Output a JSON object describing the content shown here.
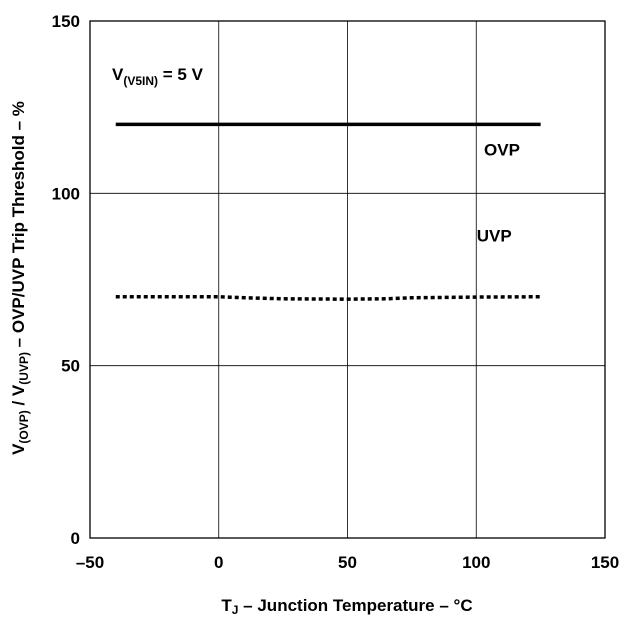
{
  "chart_data": {
    "type": "line",
    "xlabel": {
      "main": "T",
      "sub": "J",
      "rest": " – Junction Temperature – °C"
    },
    "ylabel": {
      "v1": "V",
      "s1": "(OVP)",
      "mid": " / V",
      "s2": "(UVP)",
      "rest": " – OVP/UVP Trip Threshold – %"
    },
    "annotation": {
      "main": "V",
      "sub": "(V5IN)",
      "rest": " = 5 V"
    },
    "xlim": [
      -50,
      150
    ],
    "ylim": [
      0,
      150
    ],
    "x_ticks": [
      -50,
      0,
      50,
      100,
      150
    ],
    "y_ticks": [
      0,
      50,
      100,
      150
    ],
    "x_tick_labels": [
      "–50",
      "0",
      "50",
      "100",
      "150"
    ],
    "y_tick_labels": [
      "0",
      "50",
      "100",
      "150"
    ],
    "grid": true,
    "series": [
      {
        "name": "OVP",
        "style": "solid",
        "color": "#000000",
        "x": [
          -40,
          125
        ],
        "y": [
          120,
          120
        ]
      },
      {
        "name": "UVP",
        "style": "dotted",
        "color": "#000000",
        "x": [
          -40,
          0,
          10,
          25,
          50,
          65,
          75,
          100,
          125
        ],
        "y": [
          70,
          70,
          69.7,
          69.4,
          69.3,
          69.4,
          69.7,
          69.9,
          70
        ]
      }
    ]
  }
}
